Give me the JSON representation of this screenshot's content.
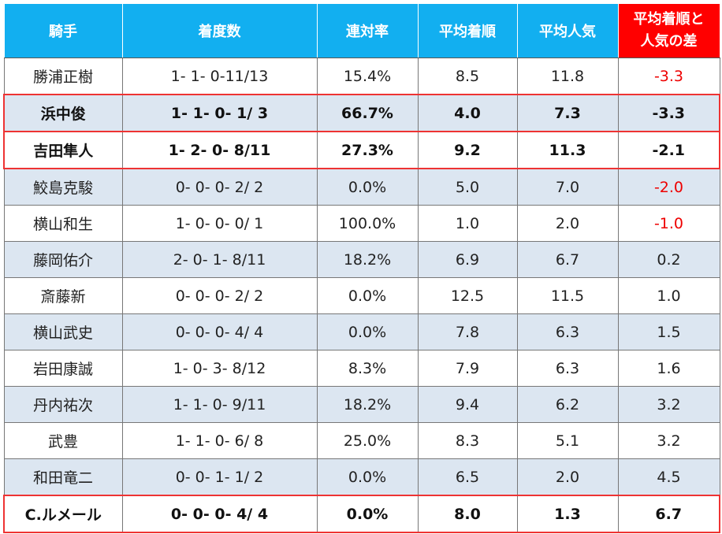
{
  "table": {
    "header": [
      "騎手",
      "着度数",
      "連対率",
      "平均着順",
      "平均人気",
      "平均着順と人気の差"
    ],
    "rows": [
      [
        "勝浦正樹",
        "1- 1- 0-11/13",
        "15.4%",
        "8.5",
        "11.8",
        "-3.3"
      ],
      [
        "浜中俊",
        "1- 1- 0- 1/ 3",
        "66.7%",
        "4.0",
        "7.3",
        "-3.3"
      ],
      [
        "吉田隼人",
        "1- 2- 0- 8/11",
        "27.3%",
        "9.2",
        "11.3",
        "-2.1"
      ],
      [
        "鮫島克駿",
        "0- 0- 0- 2/ 2",
        "0.0%",
        "5.0",
        "7.0",
        "-2.0"
      ],
      [
        "横山和生",
        "1- 0- 0- 0/ 1",
        "100.0%",
        "1.0",
        "2.0",
        "-1.0"
      ],
      [
        "藤岡佑介",
        "2- 0- 1- 8/11",
        "18.2%",
        "6.9",
        "6.7",
        "0.2"
      ],
      [
        "斎藤新",
        "0- 0- 0- 2/ 2",
        "0.0%",
        "12.5",
        "11.5",
        "1.0"
      ],
      [
        "横山武史",
        "0- 0- 0- 4/ 4",
        "0.0%",
        "7.8",
        "6.3",
        "1.5"
      ],
      [
        "岩田康誠",
        "1- 0- 3- 8/12",
        "8.3%",
        "7.9",
        "6.3",
        "1.6"
      ],
      [
        "丹内祐次",
        "1- 1- 0- 9/11",
        "18.2%",
        "9.4",
        "6.2",
        "3.2"
      ],
      [
        "武豊",
        "1- 1- 0- 6/ 8",
        "25.0%",
        "8.3",
        "5.1",
        "3.2"
      ],
      [
        "和田竜二",
        "0- 0- 1- 1/ 2",
        "0.0%",
        "6.5",
        "2.0",
        "4.5"
      ],
      [
        "C.ルメール",
        "0- 0- 0- 4/ 4",
        "0.0%",
        "8.0",
        "1.3",
        "6.7"
      ]
    ]
  }
}
